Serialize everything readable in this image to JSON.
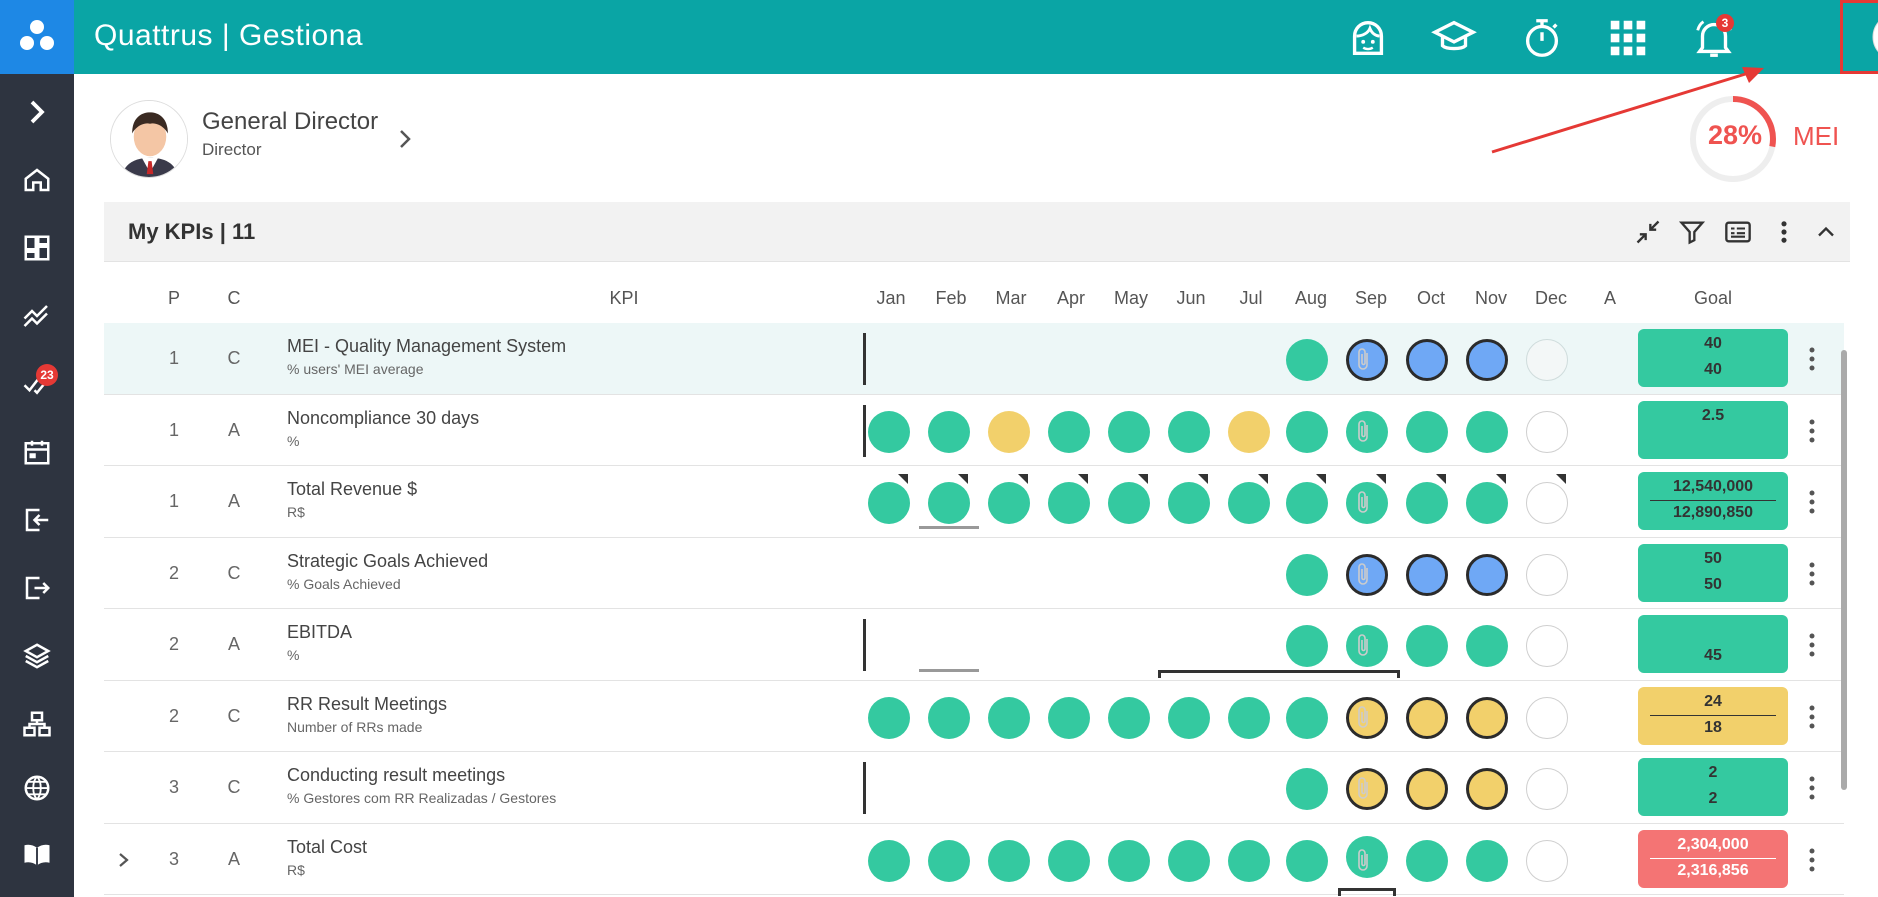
{
  "app": {
    "brand": "Quattrus | Gestiona",
    "notification_count": "3"
  },
  "sidebar": {
    "badge_count": "23",
    "items": [
      "expand-icon",
      "home-icon",
      "dashboard-icon",
      "trend-icon",
      "tasks-icon",
      "calendar-icon",
      "login-icon",
      "logout-icon",
      "layers-icon",
      "org-chart-icon",
      "globe-icon",
      "book-icon"
    ]
  },
  "profile": {
    "name": "General Director",
    "role": "Director",
    "mei_percent": "28%",
    "mei_value": 0.28,
    "mei_label": "MEI"
  },
  "kpis": {
    "title": "My KPIs | 11"
  },
  "columns": {
    "p": "P",
    "c": "C",
    "kpi": "KPI",
    "months": [
      "Jan",
      "Feb",
      "Mar",
      "Apr",
      "May",
      "Jun",
      "Jul",
      "Aug",
      "Sep",
      "Oct",
      "Nov",
      "Dec"
    ],
    "a": "A",
    "goal": "Goal"
  },
  "rows": [
    {
      "p": "1",
      "c": "C",
      "name": "MEI - Quality Management System",
      "unit": "% users' MEI average",
      "goal_top": "40",
      "goal_bottom": "40"
    },
    {
      "p": "1",
      "c": "A",
      "name": "Noncompliance 30 days",
      "unit": "%",
      "goal_top": "2.5",
      "goal_bottom": ""
    },
    {
      "p": "1",
      "c": "A",
      "name": "Total Revenue $",
      "unit": "R$",
      "goal_top": "12,540,000",
      "goal_bottom": "12,890,850"
    },
    {
      "p": "2",
      "c": "C",
      "name": "Strategic Goals Achieved",
      "unit": "% Goals Achieved",
      "goal_top": "50",
      "goal_bottom": "50"
    },
    {
      "p": "2",
      "c": "A",
      "name": "EBITDA",
      "unit": "%",
      "goal_top": "",
      "goal_bottom": "45"
    },
    {
      "p": "2",
      "c": "C",
      "name": "RR Result Meetings",
      "unit": "Number of RRs made",
      "goal_top": "24",
      "goal_bottom": "18"
    },
    {
      "p": "3",
      "c": "C",
      "name": "Conducting result meetings",
      "unit": "% Gestores com RR Realizadas / Gestores",
      "goal_top": "2",
      "goal_bottom": "2"
    },
    {
      "p": "3",
      "c": "A",
      "name": "Total Cost",
      "unit": "R$",
      "goal_top": "2,304,000",
      "goal_bottom": "2,316,856"
    }
  ],
  "status_colors": {
    "achieved": "#34c9a0",
    "warning": "#f2d06b",
    "not_reached": "#f47474",
    "pending": "#6fa8f5"
  }
}
